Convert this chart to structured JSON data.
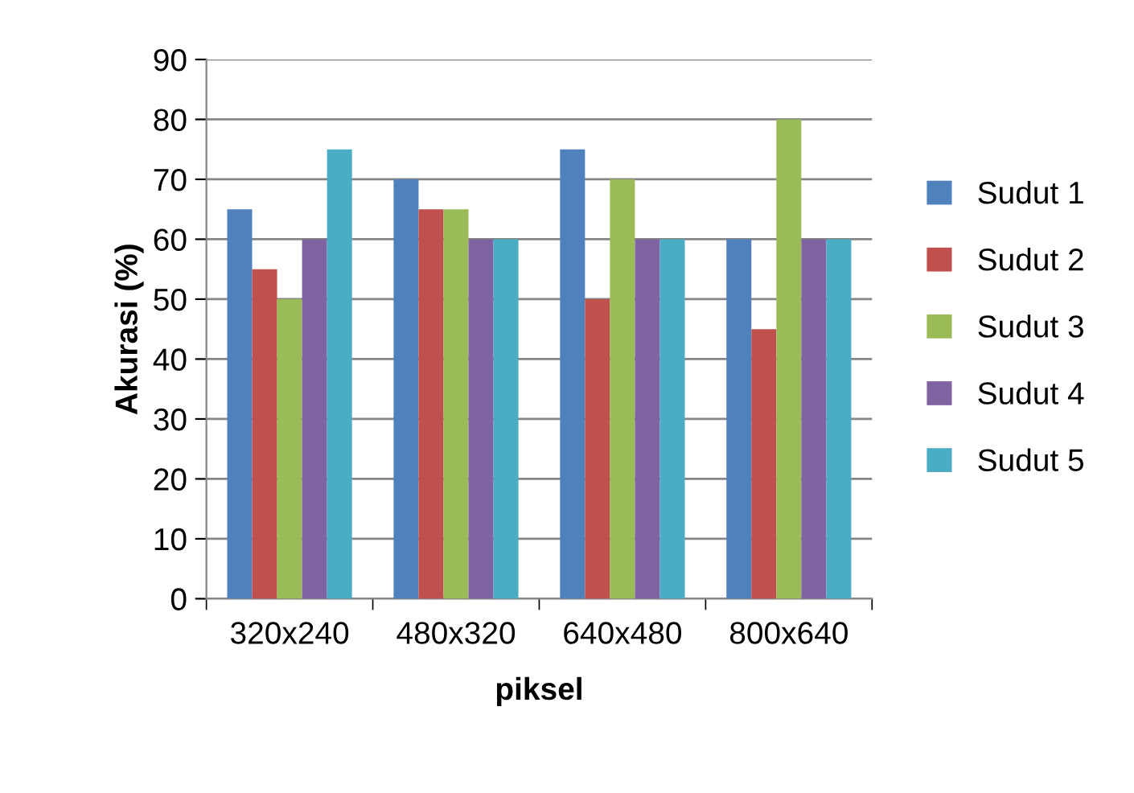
{
  "chart_data": {
    "type": "bar",
    "xlabel": "piksel",
    "ylabel": "Akurasi (%)",
    "categories": [
      "320x240",
      "480x320",
      "640x480",
      "800x640"
    ],
    "series": [
      {
        "name": "Sudut 1",
        "color": "#4f81bd",
        "values": [
          65,
          70,
          75,
          60
        ]
      },
      {
        "name": "Sudut 2",
        "color": "#c0504d",
        "values": [
          55,
          65,
          50,
          45
        ]
      },
      {
        "name": "Sudut 3",
        "color": "#9bbb59",
        "values": [
          50,
          65,
          70,
          80
        ]
      },
      {
        "name": "Sudut 4",
        "color": "#8064a2",
        "values": [
          60,
          60,
          60,
          60
        ]
      },
      {
        "name": "Sudut 5",
        "color": "#4bacc6",
        "values": [
          75,
          60,
          60,
          60
        ]
      }
    ],
    "ylim": [
      0,
      90
    ],
    "yticks": [
      0,
      10,
      20,
      30,
      40,
      50,
      60,
      70,
      80,
      90
    ],
    "grid": "y",
    "legend": "right"
  }
}
